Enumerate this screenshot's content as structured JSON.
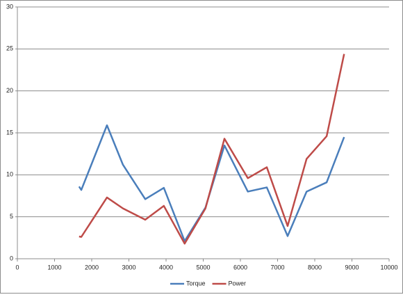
{
  "chart_data": {
    "type": "line",
    "x": [
      1660,
      1720,
      2410,
      2840,
      3440,
      3940,
      4500,
      5060,
      5570,
      6200,
      6710,
      7270,
      7780,
      8320,
      8790
    ],
    "series": [
      {
        "name": "Torque",
        "color": "#4a7ebb",
        "values": [
          8.6,
          8.2,
          15.9,
          11.2,
          7.1,
          8.45,
          2.1,
          6.1,
          13.5,
          8.0,
          8.5,
          2.7,
          8.0,
          9.1,
          14.5
        ]
      },
      {
        "name": "Power",
        "color": "#be4b48",
        "values": [
          2.65,
          2.6,
          7.3,
          6.0,
          4.65,
          6.3,
          1.8,
          6.0,
          14.3,
          9.6,
          10.9,
          3.9,
          11.9,
          14.6,
          24.4
        ]
      }
    ],
    "xlim": [
      0,
      10000
    ],
    "xticks": [
      0,
      1000,
      2000,
      3000,
      4000,
      5000,
      6000,
      7000,
      8000,
      9000,
      10000
    ],
    "ylim": [
      0,
      30
    ],
    "yticks": [
      0,
      5,
      10,
      15,
      20,
      25,
      30
    ],
    "grid": true,
    "legend": "bottom"
  }
}
